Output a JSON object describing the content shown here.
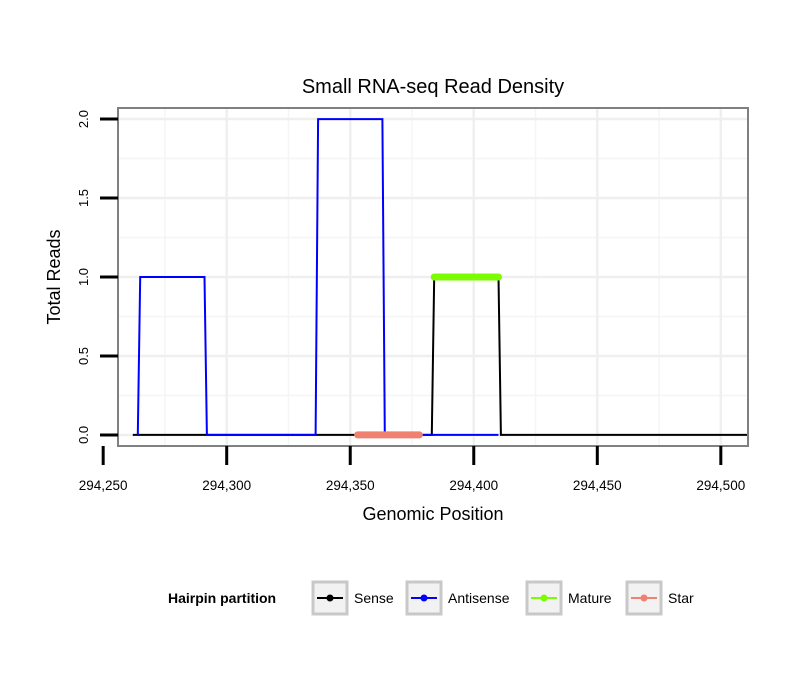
{
  "chart_data": {
    "type": "line",
    "title": "Small RNA-seq Read Density",
    "xlabel": "Genomic Position",
    "ylabel": "Total Reads",
    "xlim": [
      294256,
      294511
    ],
    "ylim": [
      -0.07,
      2.07
    ],
    "x_ticks": [
      294250,
      294300,
      294350,
      294400,
      294450,
      294500
    ],
    "x_tick_labels": [
      "294,250",
      "294,300",
      "294,350",
      "294,400",
      "294,450",
      "294,500"
    ],
    "y_ticks": [
      0,
      0.5,
      1,
      1.5,
      2
    ],
    "y_tick_labels": [
      "0.0",
      "0.5",
      "1.0",
      "1.5",
      "2.0"
    ],
    "grid": true,
    "series": [
      {
        "name": "Sense",
        "color": "#000000",
        "width": "thin",
        "x": [
          294262,
          294383,
          294384,
          294410,
          294411,
          294511
        ],
        "y": [
          0,
          0,
          1,
          1,
          0,
          0
        ]
      },
      {
        "name": "Antisense",
        "color": "#0000ff",
        "width": "thin",
        "x": [
          294264,
          294265,
          294291,
          294292,
          294336,
          294337,
          294363,
          294364,
          294383,
          294384,
          294410
        ],
        "y": [
          0,
          1,
          1,
          0,
          0,
          2,
          2,
          0,
          0,
          0,
          0
        ]
      },
      {
        "name": "Mature",
        "color": "#7cfc00",
        "width": "thick",
        "x": [
          294384,
          294410
        ],
        "y": [
          1,
          1
        ]
      },
      {
        "name": "Star",
        "color": "#f08070",
        "width": "thick",
        "x": [
          294353,
          294378
        ],
        "y": [
          0,
          0
        ]
      }
    ],
    "legend": {
      "title": "Hairpin partition",
      "placement": "bottom",
      "entries": [
        "Sense",
        "Antisense",
        "Mature",
        "Star"
      ]
    }
  }
}
